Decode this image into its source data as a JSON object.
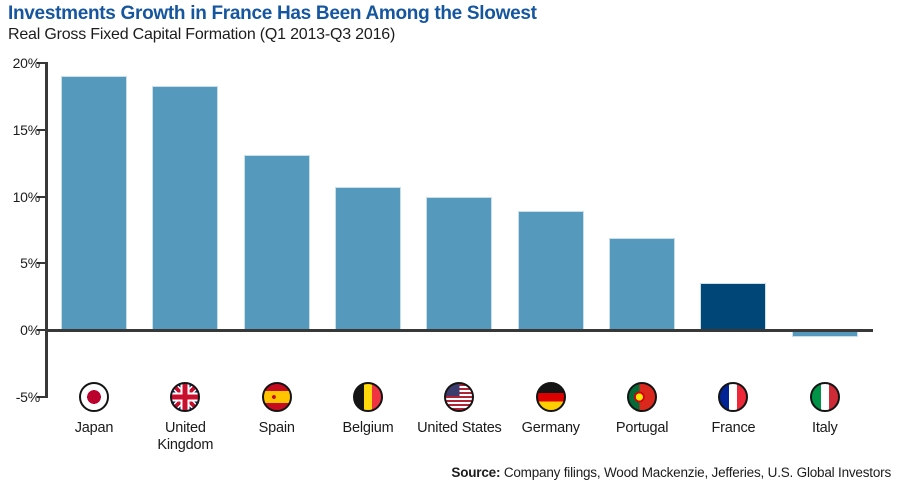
{
  "header": {
    "title": "Investments Growth in France Has Been Among the Slowest",
    "subtitle": "Real Gross Fixed Capital Formation (Q1 2013-Q3 2016)"
  },
  "source": {
    "label": "Source:",
    "rest": " Company filings, Wood Mackenzie, Jefferies, U.S. Global Investors"
  },
  "colors": {
    "title": "#16569E",
    "bar": "#559ABD",
    "highlight": "#004677",
    "axis": "#383838"
  },
  "chart_data": {
    "type": "bar",
    "title": "Investments Growth in France Has Been Among the Slowest",
    "subtitle": "Real Gross Fixed Capital Formation (Q1 2013-Q3 2016)",
    "xlabel": "",
    "ylabel": "",
    "categories": [
      "Japan",
      "United Kingdom",
      "Spain",
      "Belgium",
      "United States",
      "Germany",
      "Portugal",
      "France",
      "Italy"
    ],
    "values": [
      19.0,
      18.3,
      13.1,
      10.7,
      10.0,
      8.9,
      6.9,
      3.5,
      -0.3
    ],
    "flags": [
      "japan",
      "united-kingdom",
      "spain",
      "belgium",
      "united-states",
      "germany",
      "portugal",
      "france",
      "italy"
    ],
    "highlight_index": 7,
    "ylim": [
      -5,
      20
    ],
    "yticks": [
      20,
      15,
      10,
      5,
      0,
      -5
    ],
    "ytick_format": "%",
    "grid": false,
    "legend": null
  }
}
